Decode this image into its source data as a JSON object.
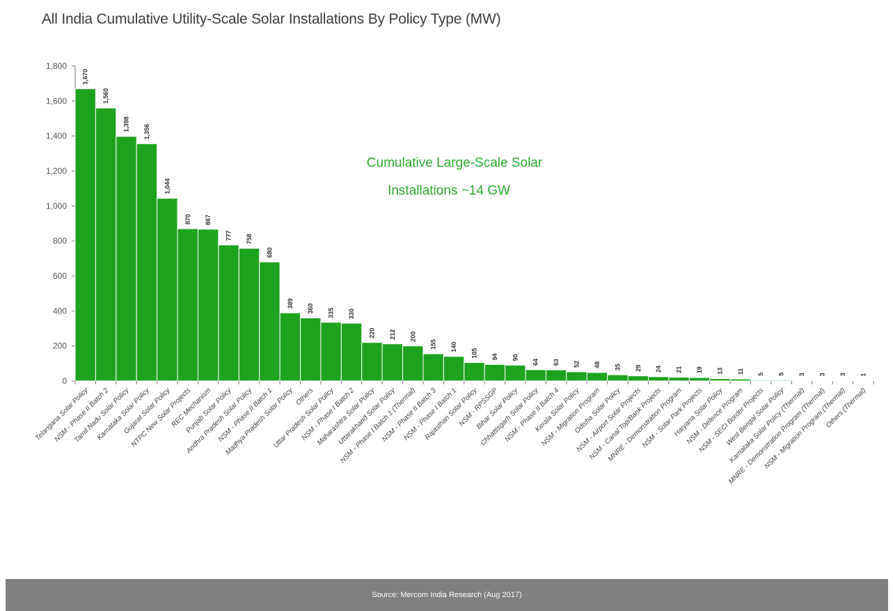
{
  "title": "All India Cumulative Utility-Scale Solar Installations By Policy Type (MW)",
  "footer": {
    "source": "Source: Mercom India Research (Aug 2017)"
  },
  "colors": {
    "bar": "#1fa31f",
    "bar_border": "#ffffff",
    "callout": "#2eaa2e",
    "axis": "#7a7a7a"
  },
  "chart_data": {
    "type": "bar",
    "title": "All India Cumulative Utility-Scale Solar Installations By Policy Type (MW)",
    "xlabel": "",
    "ylabel": "",
    "ylim": [
      0,
      1800
    ],
    "yticks": [
      0,
      200,
      400,
      600,
      800,
      1000,
      1200,
      1400,
      1600,
      1800
    ],
    "ytick_labels": [
      "0",
      "200",
      "400",
      "600",
      "800",
      "1,000",
      "1,200",
      "1,400",
      "1,600",
      "1,800"
    ],
    "grid": false,
    "legend": "none",
    "annotation": [
      "Cumulative Large-Scale Solar",
      "Installations ~14 GW"
    ],
    "categories": [
      "Telangana Solar Policy",
      "NSM - Phase II Batch 2",
      "Tamil Nadu Solar Policy",
      "Karnataka Solar Policy",
      "Gujarat Solar Policy",
      "NTPC New Solar Projects",
      "REC Mechanism",
      "Punjab Solar Policy",
      "Andhra Pradesh Solar Policy",
      "NSM - Phase II Batch 1",
      "Madhya Pradesh Solar Policy",
      "Others",
      "Uttar Pradesh Solar Policy",
      "NSM - Phase I Batch 2",
      "Maharashtra Solar Policy",
      "Uttarakhand Solar Policy",
      "NSM - Phase I Batch 1 (Thermal)",
      "NSM - Phase II Batch 3",
      "NSM - Phase I Batch 1",
      "Rajasthan Solar Policy",
      "NSM - RPSSGP",
      "Bihar Solar Policy",
      "Chhattisgarh Solar Policy",
      "NSM - Phase II Batch 4",
      "Kerala Solar Policy",
      "NSM - Migration Program",
      "Odisha Solar Policy",
      "NSM - Airport Solar Projects",
      "NSM - Canal Top/Bank Projects",
      "MNRE - Demonstration Program",
      "NSM - Solar Park Projects",
      "Haryana Solar Policy",
      "NSM - Defence Program",
      "NSM - SECI Border Projects",
      "West Bengal Solar Policy",
      "Karnataka Solar Policy (Thermal)",
      "MNRE - Demonstration Program (Thermal)",
      "NSM - Migration Program (Thermal)",
      "Others (Thermal)"
    ],
    "values": [
      1670,
      1560,
      1398,
      1356,
      1044,
      870,
      867,
      777,
      758,
      680,
      389,
      360,
      335,
      330,
      220,
      212,
      200,
      155,
      140,
      105,
      94,
      90,
      64,
      63,
      52,
      48,
      35,
      29,
      24,
      21,
      19,
      13,
      11,
      5,
      5,
      3,
      3,
      3,
      1
    ],
    "value_labels": [
      "1,670",
      "1,560",
      "1,398",
      "1,356",
      "1,044",
      "870",
      "867",
      "777",
      "758",
      "680",
      "389",
      "360",
      "335",
      "330",
      "220",
      "212",
      "200",
      "155",
      "140",
      "105",
      "94",
      "90",
      "64",
      "63",
      "52",
      "48",
      "35",
      "29",
      "24",
      "21",
      "19",
      "13",
      "11",
      "5",
      "5",
      "3",
      "3",
      "3",
      "1"
    ]
  }
}
